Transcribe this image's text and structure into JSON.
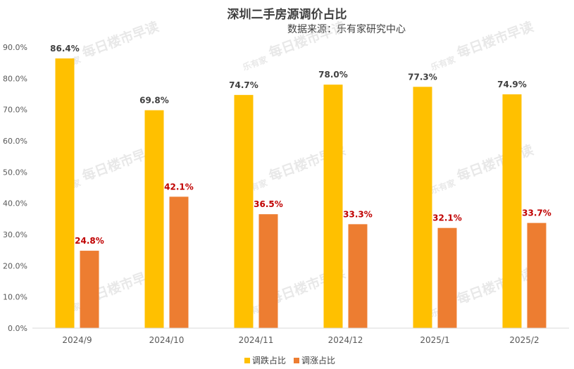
{
  "chart_data": {
    "type": "bar",
    "title": "深圳二手房源调价占比",
    "subtitle": "数据来源：乐有家研究中心",
    "categories": [
      "2024/9",
      "2024/10",
      "2024/11",
      "2024/12",
      "2025/1",
      "2025/2"
    ],
    "series": [
      {
        "name": "调跌占比",
        "values": [
          86.4,
          69.8,
          74.7,
          78.0,
          77.3,
          74.9
        ],
        "labels": [
          "86.4%",
          "69.8%",
          "74.7%",
          "78.0%",
          "77.3%",
          "74.9%"
        ],
        "color": "#FFC000",
        "label_color": "#404040"
      },
      {
        "name": "调涨占比",
        "values": [
          24.8,
          42.1,
          36.5,
          33.3,
          32.1,
          33.7
        ],
        "labels": [
          "24.8%",
          "42.1%",
          "36.5%",
          "33.3%",
          "32.1%",
          "33.7%"
        ],
        "color": "#ED7D31",
        "label_color": "#C00000"
      }
    ],
    "ylim": [
      0,
      90
    ],
    "yticks": [
      "0.0%",
      "10.0%",
      "20.0%",
      "30.0%",
      "40.0%",
      "50.0%",
      "60.0%",
      "70.0%",
      "80.0%",
      "90.0%"
    ],
    "xlabel": "",
    "ylabel": "",
    "grid": false,
    "legend_position": "bottom"
  },
  "watermark": {
    "logo": "乐有家",
    "text": "每日楼市早读"
  }
}
